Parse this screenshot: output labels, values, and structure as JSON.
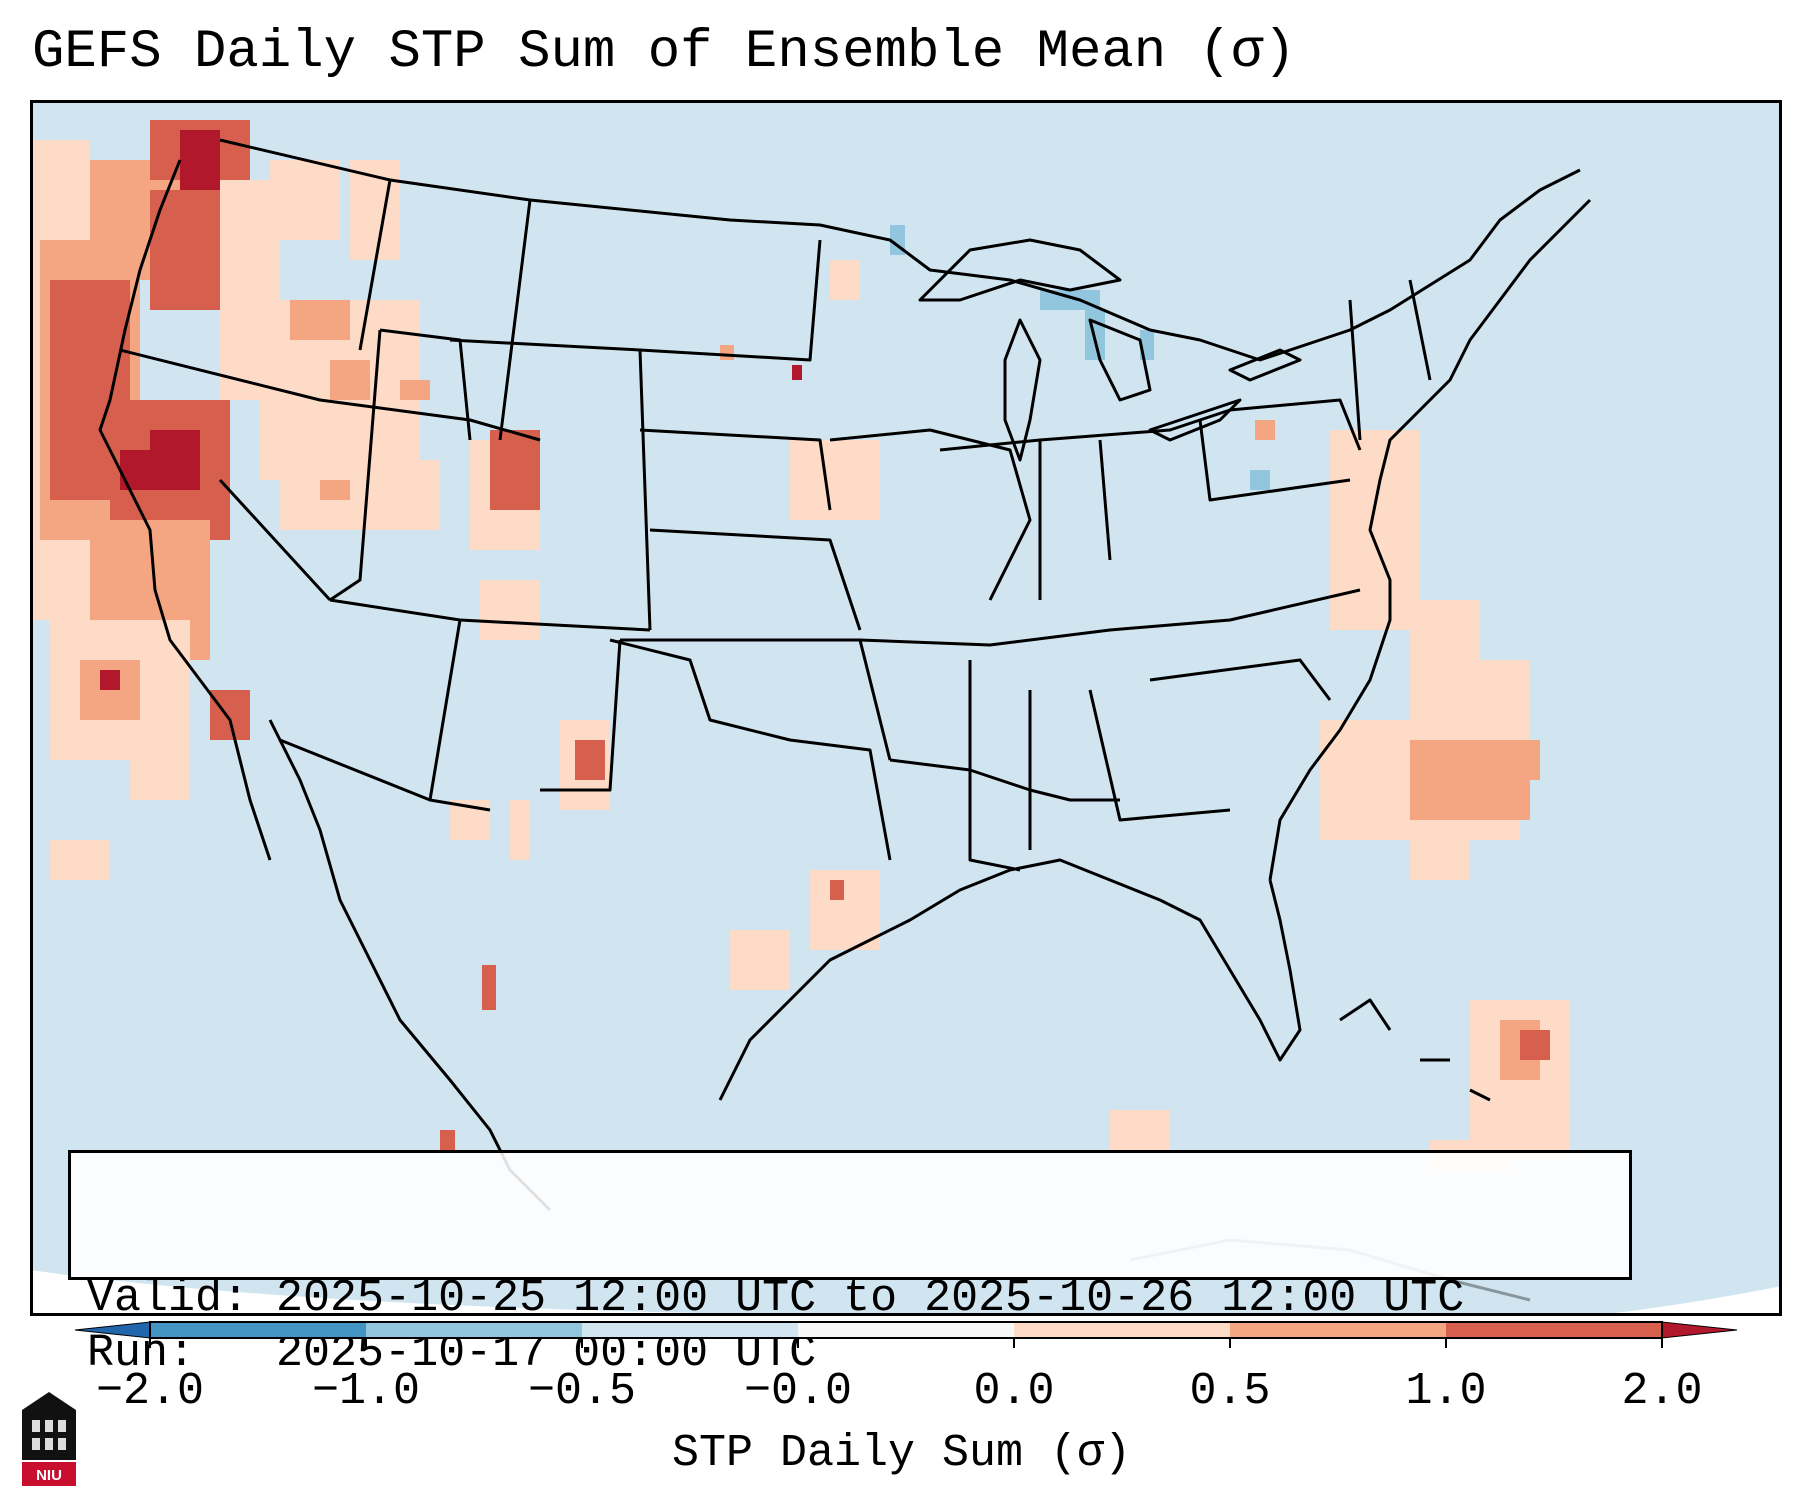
{
  "title": "GEFS Daily STP Sum of Ensemble Mean (σ)",
  "info": {
    "valid_label": "Valid:",
    "valid_value": "2025-10-25 12:00 UTC to 2025-10-26 12:00 UTC",
    "run_label": "Run:",
    "run_value": "2025-10-17 00:00 UTC"
  },
  "colorbar": {
    "label": "STP Daily Sum (σ)",
    "ticks": [
      "−2.0",
      "−1.0",
      "−0.5",
      "−0.0",
      "0.0",
      "0.5",
      "1.0",
      "2.0"
    ],
    "bins": [
      {
        "range": "-2.0 to -1.0",
        "color": "#4393c3"
      },
      {
        "range": "-1.0 to -0.5",
        "color": "#92c5de"
      },
      {
        "range": "-0.5 to -0.0",
        "color": "#d1e5f0"
      },
      {
        "range": "-0.0 to 0.0",
        "color": "#f7f7f7"
      },
      {
        "range": "0.0 to 0.5",
        "color": "#fddbc7"
      },
      {
        "range": "0.5 to 1.0",
        "color": "#f4a582"
      },
      {
        "range": "1.0 to 2.0",
        "color": "#d6604d"
      }
    ],
    "extend_low_color": "#2166ac",
    "extend_high_color": "#b2182b"
  },
  "map": {
    "background_color": "#d1e5f0",
    "outside_projection_color": "#ffffff",
    "boundary_color": "#000000"
  },
  "logo": {
    "text": "NIU"
  }
}
